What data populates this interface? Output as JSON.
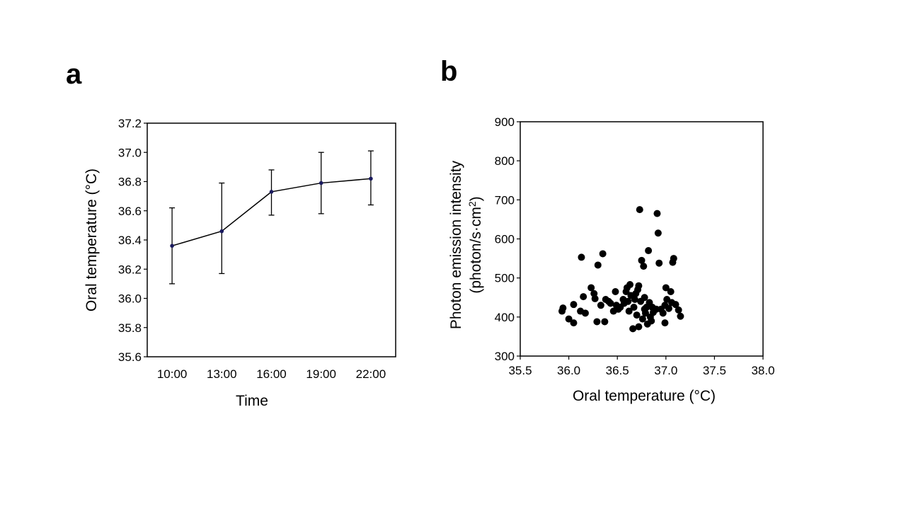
{
  "chart_data": [
    {
      "panel": "a",
      "type": "line",
      "xlabel": "Time",
      "ylabel": "Oral temperature (°C)",
      "categories": [
        "10:00",
        "13:00",
        "16:00",
        "19:00",
        "22:00"
      ],
      "values": [
        36.36,
        36.46,
        36.73,
        36.79,
        36.82
      ],
      "error_low": [
        36.1,
        36.17,
        36.57,
        36.58,
        36.64
      ],
      "error_high": [
        36.62,
        36.79,
        36.88,
        37.0,
        37.01
      ],
      "ylim": [
        35.6,
        37.2
      ],
      "yticks": [
        "35.6",
        "35.8",
        "36.0",
        "36.2",
        "36.4",
        "36.6",
        "36.8",
        "37.0",
        "37.2"
      ],
      "grid": false,
      "legend": "none",
      "colors": {
        "line": "#000000",
        "marker": "#1a1a5e"
      }
    },
    {
      "panel": "b",
      "type": "scatter",
      "xlabel": "Oral temperature (°C)",
      "ylabel_line1": "Photon emission intensity",
      "ylabel_line2_prefix": "(photon/s·cm",
      "ylabel_line2_sup": "2",
      "ylabel_line2_suffix": ")",
      "xlim": [
        35.5,
        38.0
      ],
      "ylim": [
        300,
        900
      ],
      "xticks": [
        "35.5",
        "36.0",
        "36.5",
        "37.0",
        "37.5",
        "38.0"
      ],
      "yticks": [
        "300",
        "400",
        "500",
        "600",
        "700",
        "800",
        "900"
      ],
      "grid": false,
      "legend": "none",
      "colors": {
        "marker": "#000000"
      },
      "points": [
        [
          35.93,
          415
        ],
        [
          35.94,
          423
        ],
        [
          36.0,
          395
        ],
        [
          36.05,
          385
        ],
        [
          36.05,
          432
        ],
        [
          36.12,
          415
        ],
        [
          36.13,
          553
        ],
        [
          36.15,
          452
        ],
        [
          36.17,
          410
        ],
        [
          36.23,
          475
        ],
        [
          36.26,
          460
        ],
        [
          36.27,
          447
        ],
        [
          36.29,
          388
        ],
        [
          36.3,
          533
        ],
        [
          36.33,
          430
        ],
        [
          36.35,
          562
        ],
        [
          36.37,
          388
        ],
        [
          36.38,
          445
        ],
        [
          36.41,
          440
        ],
        [
          36.43,
          435
        ],
        [
          36.46,
          415
        ],
        [
          36.48,
          465
        ],
        [
          36.49,
          430
        ],
        [
          36.51,
          420
        ],
        [
          36.53,
          425
        ],
        [
          36.56,
          445
        ],
        [
          36.57,
          435
        ],
        [
          36.59,
          465
        ],
        [
          36.6,
          475
        ],
        [
          36.61,
          440
        ],
        [
          36.62,
          415
        ],
        [
          36.63,
          483
        ],
        [
          36.64,
          455
        ],
        [
          36.66,
          370
        ],
        [
          36.67,
          425
        ],
        [
          36.68,
          445
        ],
        [
          36.69,
          460
        ],
        [
          36.7,
          405
        ],
        [
          36.71,
          470
        ],
        [
          36.72,
          480
        ],
        [
          36.72,
          375
        ],
        [
          36.73,
          675
        ],
        [
          36.74,
          440
        ],
        [
          36.75,
          545
        ],
        [
          36.76,
          395
        ],
        [
          36.77,
          530
        ],
        [
          36.78,
          420
        ],
        [
          36.78,
          450
        ],
        [
          36.79,
          410
        ],
        [
          36.8,
          425
        ],
        [
          36.81,
          382
        ],
        [
          36.82,
          570
        ],
        [
          36.83,
          437
        ],
        [
          36.84,
          400
        ],
        [
          36.85,
          390
        ],
        [
          36.86,
          425
        ],
        [
          36.87,
          412
        ],
        [
          36.9,
          420
        ],
        [
          36.91,
          665
        ],
        [
          36.92,
          615
        ],
        [
          36.93,
          538
        ],
        [
          36.95,
          420
        ],
        [
          36.97,
          410
        ],
        [
          36.99,
          430
        ],
        [
          36.99,
          385
        ],
        [
          37.0,
          475
        ],
        [
          37.01,
          445
        ],
        [
          37.03,
          422
        ],
        [
          37.05,
          465
        ],
        [
          37.06,
          437
        ],
        [
          37.07,
          540
        ],
        [
          37.08,
          550
        ],
        [
          37.1,
          432
        ],
        [
          37.13,
          418
        ],
        [
          37.15,
          402
        ]
      ]
    }
  ]
}
